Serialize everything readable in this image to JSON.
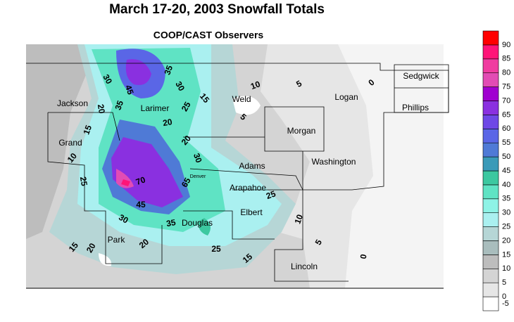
{
  "header": {
    "title": "March 17-20, 2003 Snowfall Totals",
    "subtitle": "COOP/CAST Observers"
  },
  "counties": [
    "Jackson",
    "Larimer",
    "Weld",
    "Logan",
    "Sedgwick",
    "Phillips",
    "Morgan",
    "Grand",
    "Adams",
    "Washington",
    "Denver",
    "Arapahoe",
    "Elbert",
    "Douglas",
    "Park",
    "Lincoln"
  ],
  "contour_labels": [
    30,
    45,
    35,
    30,
    15,
    10,
    5,
    0,
    20,
    35,
    25,
    20,
    15,
    5,
    20,
    10,
    30,
    25,
    70,
    65,
    25,
    45,
    30,
    35,
    10,
    5,
    15,
    20,
    20,
    25,
    15,
    0
  ],
  "legend": {
    "values": [
      -5,
      0,
      5,
      10,
      15,
      20,
      25,
      30,
      35,
      40,
      45,
      50,
      55,
      60,
      65,
      70,
      75,
      80,
      85,
      90
    ],
    "colors": [
      "#ffffff",
      "#e6e6e6",
      "#d4d4d4",
      "#bdbdbd",
      "#a9bdbd",
      "#b6d6d6",
      "#aaf0f0",
      "#8ef3e6",
      "#5fe3c4",
      "#3cc8a0",
      "#3a9ab8",
      "#4f7ad6",
      "#5a66e6",
      "#6e48e6",
      "#8a30e0",
      "#a000d0",
      "#e24cb4",
      "#f03ca0",
      "#ff1478",
      "#ff0000"
    ]
  }
}
